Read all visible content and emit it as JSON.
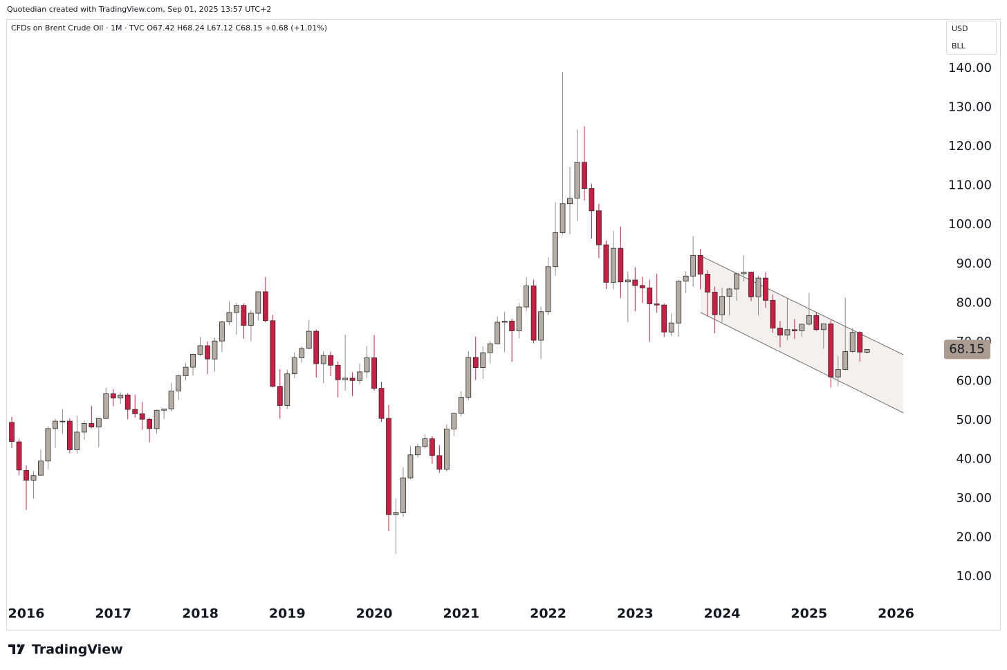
{
  "header": {
    "credit": "Quotedian created with TradingView.com, Sep 01, 2025 13:57 UTC+2",
    "legend": "CFDs on Brent Crude Oil · 1M · TVC  O67.42  H68.24  L67.12  C68.15  +0.68 (+1.01%)",
    "currency": "USD",
    "unit": "BLL"
  },
  "footer": {
    "logo": "TradingView"
  },
  "chart_data": {
    "type": "candlestick",
    "categories": [
      null,
      null,
      "2016",
      null,
      null,
      null,
      null,
      null,
      null,
      null,
      null,
      null,
      null,
      null,
      "2017",
      null,
      null,
      null,
      null,
      null,
      null,
      null,
      null,
      null,
      null,
      null,
      "2018",
      null,
      null,
      null,
      null,
      null,
      null,
      null,
      null,
      null,
      null,
      null,
      "2019",
      null,
      null,
      null,
      null,
      null,
      null,
      null,
      null,
      null,
      null,
      null,
      "2020",
      null,
      null,
      null,
      null,
      null,
      null,
      null,
      null,
      null,
      null,
      null,
      "2021",
      null,
      null,
      null,
      null,
      null,
      null,
      null,
      null,
      null,
      null,
      null,
      "2022",
      null,
      null,
      null,
      null,
      null,
      null,
      null,
      null,
      null,
      null,
      null,
      "2023",
      null,
      null,
      null,
      null,
      null,
      null,
      null,
      null,
      null,
      null,
      null,
      "2024",
      null,
      null,
      null,
      null,
      null,
      null,
      null,
      null,
      null,
      null,
      null,
      "2025",
      null,
      null,
      null,
      null,
      null,
      null,
      null,
      null,
      null,
      null,
      null,
      "2026"
    ],
    "open": [
      49.5,
      44.5,
      37.2,
      34.7,
      36.0,
      39.6,
      47.9,
      49.8,
      49.8,
      42.5,
      47.0,
      49.2,
      48.3,
      50.5,
      56.8,
      55.7,
      56.5,
      52.8,
      51.7,
      50.3,
      47.9,
      52.6,
      52.9,
      57.5,
      61.4,
      63.6,
      66.9,
      69.1,
      65.7,
      70.3,
      75.2,
      77.6,
      79.4,
      74.3,
      77.4,
      82.9,
      75.5,
      58.7,
      53.8,
      61.9,
      66.0,
      68.4,
      72.8,
      64.5,
      66.6,
      64.1,
      60.4,
      60.8,
      60.2,
      62.4,
      66.0,
      58.2,
      50.5,
      25.9,
      26.4,
      35.3,
      41.2,
      43.3,
      45.3,
      41.0,
      37.5,
      47.8,
      51.8,
      55.9,
      66.1,
      63.5,
      67.3,
      69.6,
      75.1,
      75.4,
      72.9,
      79.0,
      84.4,
      70.5,
      77.8,
      89.3,
      98.0,
      105.4,
      106.8,
      116.0,
      109.3,
      103.6,
      94.9,
      85.3,
      94.0,
      85.4,
      85.9,
      84.5,
      83.9,
      79.8,
      79.5,
      72.6,
      74.9,
      85.6,
      86.9,
      92.2,
      87.4,
      82.8,
      77.0,
      81.7,
      83.6,
      87.5,
      87.9,
      81.6,
      86.4,
      80.7,
      73.6,
      71.8,
      73.2,
      72.9,
      74.6,
      76.8,
      73.2,
      74.7,
      61.1,
      63.0,
      67.6,
      72.5,
      67.42,
      null,
      null,
      null,
      null
    ],
    "high": [
      50.9,
      45.2,
      38.5,
      37.0,
      42.5,
      48.5,
      50.5,
      52.9,
      50.5,
      51.2,
      49.9,
      53.7,
      50.4,
      58.3,
      58.0,
      57.2,
      57.0,
      56.6,
      54.7,
      50.6,
      52.8,
      53.0,
      59.5,
      61.7,
      64.7,
      67.1,
      71.3,
      70.2,
      71.1,
      75.5,
      80.5,
      80.1,
      79.9,
      78.2,
      83.0,
      86.7,
      77.0,
      63.1,
      63.0,
      67.4,
      68.9,
      75.6,
      73.2,
      67.7,
      67.6,
      65.1,
      71.9,
      62.3,
      64.5,
      69.0,
      71.8,
      59.9,
      53.9,
      30.0,
      38.0,
      43.4,
      44.0,
      46.5,
      46.0,
      43.7,
      49.0,
      52.0,
      57.4,
      67.7,
      71.4,
      68.9,
      70.3,
      76.6,
      77.8,
      76.0,
      80.0,
      86.7,
      86.0,
      79.1,
      91.7,
      105.8,
      139.1,
      114.8,
      124.4,
      125.2,
      110.5,
      105.4,
      96.0,
      98.5,
      99.6,
      88.0,
      89.1,
      86.8,
      86.0,
      87.5,
      79.9,
      77.3,
      86.0,
      88.1,
      97.1,
      93.8,
      88.4,
      84.2,
      84.0,
      84.0,
      87.6,
      92.2,
      88.0,
      87.0,
      87.9,
      82.2,
      75.4,
      81.2,
      75.9,
      74.7,
      82.6,
      77.6,
      74.8,
      75.6,
      66.5,
      81.4,
      73.6,
      72.8,
      68.24,
      null,
      null,
      null,
      null
    ],
    "low": [
      42.9,
      36.0,
      27.1,
      30.0,
      35.8,
      37.5,
      43.0,
      46.6,
      41.6,
      41.5,
      45.0,
      48.0,
      43.2,
      50.3,
      53.6,
      54.2,
      50.3,
      50.7,
      47.6,
      44.4,
      46.6,
      50.4,
      52.3,
      55.2,
      60.2,
      61.5,
      66.5,
      61.8,
      62.5,
      67.5,
      74.3,
      71.9,
      70.9,
      70.3,
      75.6,
      75.1,
      58.4,
      50.4,
      52.9,
      60.8,
      64.7,
      68.2,
      61.0,
      59.5,
      61.3,
      55.9,
      57.6,
      56.2,
      59.3,
      60.8,
      57.6,
      49.6,
      21.7,
      15.9,
      25.3,
      34.9,
      40.5,
      42.8,
      38.9,
      36.6,
      36.9,
      46.0,
      51.0,
      55.2,
      60.3,
      60.6,
      64.6,
      69.5,
      67.4,
      65.0,
      71.0,
      77.9,
      69.7,
      65.7,
      77.0,
      87.0,
      97.5,
      97.6,
      101.0,
      106.2,
      96.5,
      91.5,
      83.6,
      83.5,
      81.3,
      75.1,
      77.9,
      80.0,
      70.1,
      77.5,
      71.3,
      71.6,
      71.4,
      82.5,
      84.2,
      83.5,
      76.6,
      72.3,
      75.1,
      76.8,
      80.6,
      85.6,
      80.5,
      76.8,
      78.8,
      72.4,
      68.7,
      70.5,
      70.8,
      71.3,
      74.3,
      72.9,
      68.3,
      58.4,
      58.8,
      62.8,
      67.2,
      65.0,
      67.12,
      null,
      null,
      null,
      null
    ],
    "close": [
      44.6,
      37.3,
      34.7,
      35.9,
      39.6,
      47.9,
      49.8,
      49.8,
      42.5,
      47.0,
      49.2,
      48.3,
      50.5,
      56.8,
      55.7,
      56.5,
      52.8,
      51.7,
      50.3,
      47.9,
      52.6,
      52.9,
      57.5,
      61.4,
      63.6,
      66.9,
      69.1,
      65.7,
      70.3,
      75.2,
      77.6,
      79.4,
      74.3,
      77.4,
      82.9,
      75.5,
      58.7,
      53.8,
      61.9,
      66.0,
      68.4,
      72.8,
      64.5,
      66.6,
      64.1,
      60.4,
      60.8,
      60.2,
      62.4,
      66.0,
      58.2,
      50.5,
      25.9,
      26.4,
      35.3,
      41.2,
      43.3,
      45.3,
      41.0,
      37.5,
      47.8,
      51.8,
      55.9,
      66.1,
      63.5,
      67.3,
      69.6,
      75.1,
      75.4,
      72.9,
      79.0,
      84.4,
      70.5,
      77.8,
      89.3,
      98.0,
      105.4,
      106.8,
      116.0,
      109.3,
      103.6,
      94.9,
      85.3,
      94.0,
      85.4,
      85.9,
      84.5,
      83.9,
      79.8,
      79.5,
      72.6,
      74.9,
      85.6,
      86.9,
      92.2,
      87.4,
      82.8,
      77.0,
      81.7,
      83.6,
      87.5,
      87.9,
      81.6,
      86.4,
      80.7,
      73.6,
      71.8,
      73.2,
      72.9,
      74.6,
      76.8,
      73.2,
      74.7,
      61.1,
      63.0,
      67.6,
      72.5,
      67.47,
      68.15,
      null,
      null,
      null,
      null
    ],
    "up_color": "#b5aca3",
    "down_color": "#cc1d44",
    "last_price": 68.15,
    "ylim": [
      -3.4,
      152.2
    ],
    "yticks": [
      {
        "value": 10,
        "label": "10.00"
      },
      {
        "value": 20,
        "label": "20.00"
      },
      {
        "value": 30,
        "label": "30.00"
      },
      {
        "value": 40,
        "label": "40.00"
      },
      {
        "value": 50,
        "label": "50.00"
      },
      {
        "value": 60,
        "label": "60.00"
      },
      {
        "value": 70,
        "label": "70.00"
      },
      {
        "value": 80,
        "label": "80.00"
      },
      {
        "value": 90,
        "label": "90.00"
      },
      {
        "value": 100,
        "label": "100.00"
      },
      {
        "value": 110,
        "label": "110.00"
      },
      {
        "value": 120,
        "label": "120.00"
      },
      {
        "value": 130,
        "label": "130.00"
      },
      {
        "value": 140,
        "label": "140.00"
      }
    ],
    "grid": false
  }
}
